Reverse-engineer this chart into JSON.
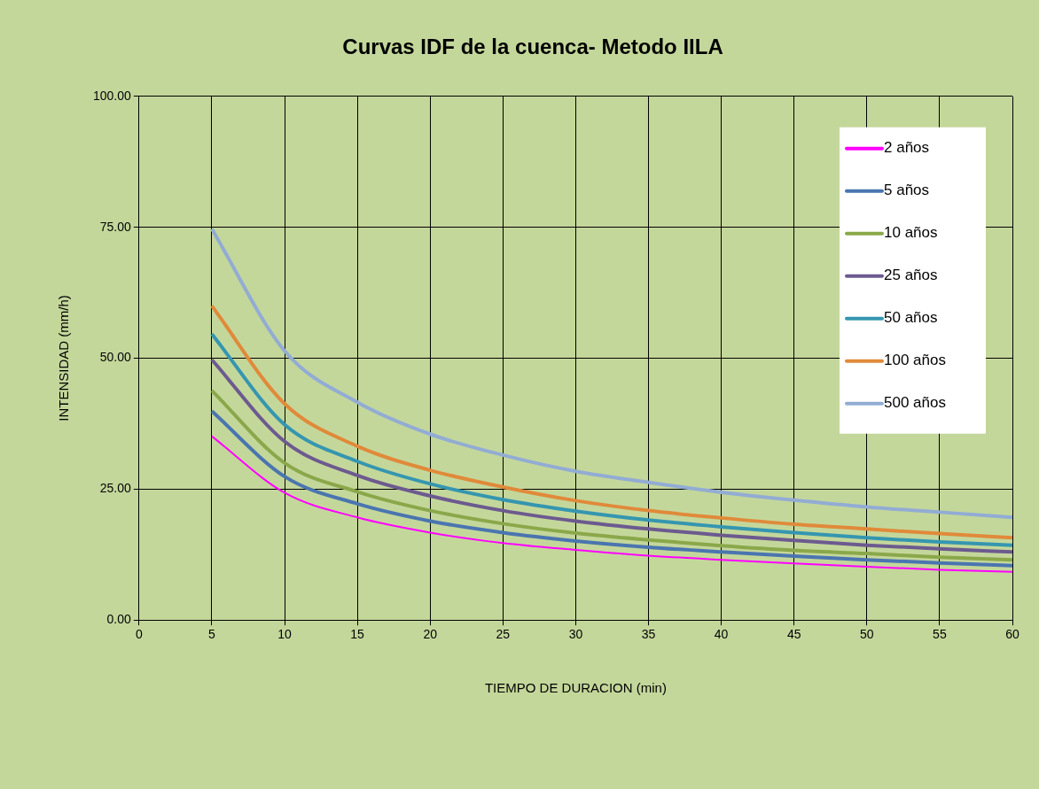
{
  "chart_data": {
    "type": "line",
    "title": "Curvas IDF de la cuenca- Metodo IILA",
    "xlabel": "TIEMPO DE DURACION (min)",
    "ylabel": "INTENSIDAD (mm/h)",
    "x": [
      5,
      10,
      15,
      20,
      25,
      30,
      35,
      40,
      45,
      50,
      55,
      60
    ],
    "series": [
      {
        "name": "2 años",
        "color": "#ff00ff",
        "values": [
          35.1,
          24.3,
          19.6,
          16.7,
          14.7,
          13.4,
          12.3,
          11.5,
          10.8,
          10.2,
          9.6,
          9.2
        ]
      },
      {
        "name": "5 años",
        "color": "#4a75b0",
        "values": [
          39.9,
          27.4,
          22.2,
          18.9,
          16.7,
          15.1,
          13.9,
          13.0,
          12.2,
          11.5,
          10.9,
          10.4
        ]
      },
      {
        "name": "10 años",
        "color": "#8aa84a",
        "values": [
          43.8,
          30.0,
          24.5,
          20.9,
          18.4,
          16.6,
          15.3,
          14.2,
          13.3,
          12.7,
          12.0,
          11.5
        ]
      },
      {
        "name": "25 años",
        "color": "#6c5a8f",
        "values": [
          49.7,
          34.1,
          27.6,
          23.7,
          20.9,
          18.9,
          17.4,
          16.2,
          15.2,
          14.3,
          13.6,
          13.0
        ]
      },
      {
        "name": "50 años",
        "color": "#3596b0",
        "values": [
          54.6,
          37.3,
          30.3,
          26.0,
          23.0,
          20.8,
          19.1,
          17.8,
          16.7,
          15.7,
          14.9,
          14.3
        ]
      },
      {
        "name": "100 años",
        "color": "#e08a3a",
        "values": [
          60.0,
          41.3,
          33.2,
          28.6,
          25.4,
          22.8,
          20.9,
          19.5,
          18.3,
          17.4,
          16.5,
          15.7
        ]
      },
      {
        "name": "500 años",
        "color": "#92acd4",
        "values": [
          74.7,
          51.4,
          41.6,
          35.5,
          31.5,
          28.4,
          26.3,
          24.4,
          22.9,
          21.6,
          20.6,
          19.6
        ]
      }
    ],
    "xlim": [
      0,
      60
    ],
    "xticks": [
      0,
      5,
      10,
      15,
      20,
      25,
      30,
      35,
      40,
      45,
      50,
      55,
      60
    ],
    "ylim": [
      0,
      100
    ],
    "yticks": [
      {
        "value": 0,
        "label": "0.00"
      },
      {
        "value": 25,
        "label": "25.00"
      },
      {
        "value": 50,
        "label": "50.00"
      },
      {
        "value": 75,
        "label": "75.00"
      },
      {
        "value": 100,
        "label": "100.00"
      }
    ],
    "grid": true,
    "legend": "top right",
    "marker": "none",
    "line_style": "solid"
  }
}
